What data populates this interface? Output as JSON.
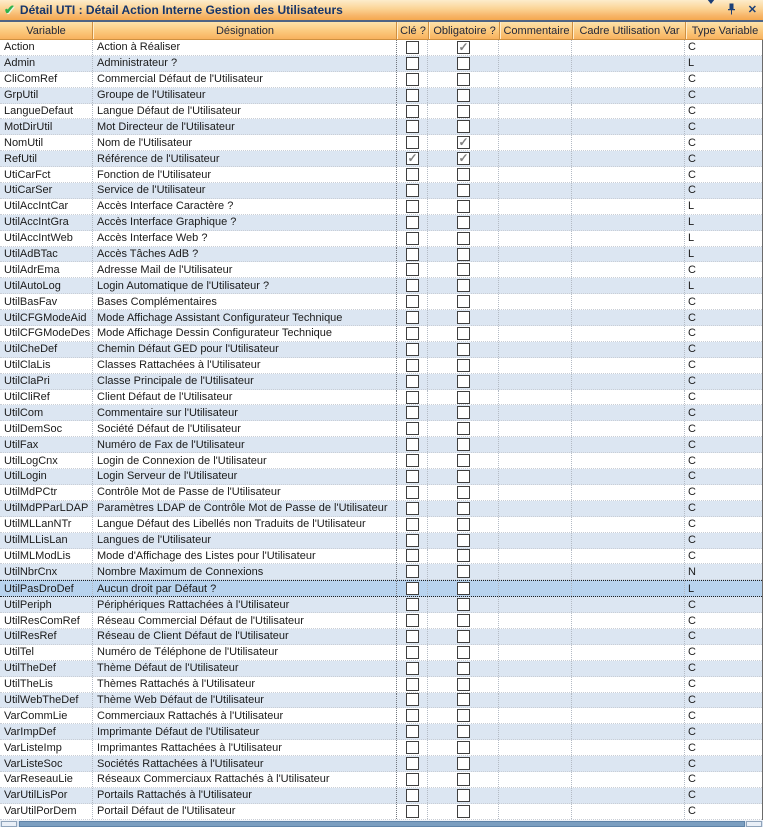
{
  "window": {
    "title": "Détail UTI : Détail Action Interne Gestion des Utilisateurs"
  },
  "colors": {
    "titlebar_orange": "#f5a94f",
    "title_text": "#16356b",
    "check_icon_green": "#2eb44b",
    "header_gradient_top": "#fde2ab",
    "header_gradient_bottom": "#f8b25e",
    "row_alt_blue": "#dce6f2",
    "row_selected_blue": "#b8d3ee",
    "scrollbar_thumb": "#7b9ec0"
  },
  "table": {
    "columns": [
      {
        "key": "variable",
        "label": "Variable"
      },
      {
        "key": "designation",
        "label": "Désignation"
      },
      {
        "key": "cle",
        "label": "Clé ?"
      },
      {
        "key": "obligatoire",
        "label": "Obligatoire ?"
      },
      {
        "key": "commentaire",
        "label": "Commentaire"
      },
      {
        "key": "cadre",
        "label": "Cadre Utilisation Var"
      },
      {
        "key": "type",
        "label": "Type Variable"
      }
    ],
    "selected_variable": "UtilPasDroDef",
    "rows": [
      {
        "variable": "Action",
        "designation": "Action à Réaliser",
        "cle": false,
        "obligatoire": true,
        "commentaire": "",
        "cadre": "",
        "type": "C"
      },
      {
        "variable": "Admin",
        "designation": "Administrateur ?",
        "cle": false,
        "obligatoire": false,
        "commentaire": "",
        "cadre": "",
        "type": "L"
      },
      {
        "variable": "CliComRef",
        "designation": "Commercial Défaut de l'Utilisateur",
        "cle": false,
        "obligatoire": false,
        "commentaire": "",
        "cadre": "",
        "type": "C"
      },
      {
        "variable": "GrpUtil",
        "designation": "Groupe de l'Utilisateur",
        "cle": false,
        "obligatoire": false,
        "commentaire": "",
        "cadre": "",
        "type": "C"
      },
      {
        "variable": "LangueDefaut",
        "designation": "Langue Défaut de l'Utilisateur",
        "cle": false,
        "obligatoire": false,
        "commentaire": "",
        "cadre": "",
        "type": "C"
      },
      {
        "variable": "MotDirUtil",
        "designation": "Mot Directeur de l'Utilisateur",
        "cle": false,
        "obligatoire": false,
        "commentaire": "",
        "cadre": "",
        "type": "C"
      },
      {
        "variable": "NomUtil",
        "designation": "Nom de l'Utilisateur",
        "cle": false,
        "obligatoire": true,
        "commentaire": "",
        "cadre": "",
        "type": "C"
      },
      {
        "variable": "RefUtil",
        "designation": "Référence de l'Utilisateur",
        "cle": true,
        "obligatoire": true,
        "commentaire": "",
        "cadre": "",
        "type": "C"
      },
      {
        "variable": "UtiCarFct",
        "designation": "Fonction de l'Utilisateur",
        "cle": false,
        "obligatoire": false,
        "commentaire": "",
        "cadre": "",
        "type": "C"
      },
      {
        "variable": "UtiCarSer",
        "designation": "Service de l'Utilisateur",
        "cle": false,
        "obligatoire": false,
        "commentaire": "",
        "cadre": "",
        "type": "C"
      },
      {
        "variable": "UtilAccIntCar",
        "designation": "Accès Interface Caractère ?",
        "cle": false,
        "obligatoire": false,
        "commentaire": "",
        "cadre": "",
        "type": "L"
      },
      {
        "variable": "UtilAccIntGra",
        "designation": "Accès Interface Graphique ?",
        "cle": false,
        "obligatoire": false,
        "commentaire": "",
        "cadre": "",
        "type": "L"
      },
      {
        "variable": "UtilAccIntWeb",
        "designation": "Accès Interface Web ?",
        "cle": false,
        "obligatoire": false,
        "commentaire": "",
        "cadre": "",
        "type": "L"
      },
      {
        "variable": "UtilAdBTac",
        "designation": "Accès Tâches AdB ?",
        "cle": false,
        "obligatoire": false,
        "commentaire": "",
        "cadre": "",
        "type": "L"
      },
      {
        "variable": "UtilAdrEma",
        "designation": "Adresse Mail de l'Utilisateur",
        "cle": false,
        "obligatoire": false,
        "commentaire": "",
        "cadre": "",
        "type": "C"
      },
      {
        "variable": "UtilAutoLog",
        "designation": "Login Automatique de l'Utilisateur ?",
        "cle": false,
        "obligatoire": false,
        "commentaire": "",
        "cadre": "",
        "type": "L"
      },
      {
        "variable": "UtilBasFav",
        "designation": "Bases Complémentaires",
        "cle": false,
        "obligatoire": false,
        "commentaire": "",
        "cadre": "",
        "type": "C"
      },
      {
        "variable": "UtilCFGModeAid",
        "designation": "Mode Affichage Assistant Configurateur Technique",
        "cle": false,
        "obligatoire": false,
        "commentaire": "",
        "cadre": "",
        "type": "C"
      },
      {
        "variable": "UtilCFGModeDes",
        "designation": "Mode Affichage Dessin Configurateur Technique",
        "cle": false,
        "obligatoire": false,
        "commentaire": "",
        "cadre": "",
        "type": "C"
      },
      {
        "variable": "UtilCheDef",
        "designation": "Chemin Défaut GED pour l'Utilisateur",
        "cle": false,
        "obligatoire": false,
        "commentaire": "",
        "cadre": "",
        "type": "C"
      },
      {
        "variable": "UtilClaLis",
        "designation": "Classes Rattachées à l'Utilisateur",
        "cle": false,
        "obligatoire": false,
        "commentaire": "",
        "cadre": "",
        "type": "C"
      },
      {
        "variable": "UtilClaPri",
        "designation": "Classe Principale de l'Utilisateur",
        "cle": false,
        "obligatoire": false,
        "commentaire": "",
        "cadre": "",
        "type": "C"
      },
      {
        "variable": "UtilCliRef",
        "designation": "Client Défaut de l'Utilisateur",
        "cle": false,
        "obligatoire": false,
        "commentaire": "",
        "cadre": "",
        "type": "C"
      },
      {
        "variable": "UtilCom",
        "designation": "Commentaire sur l'Utilisateur",
        "cle": false,
        "obligatoire": false,
        "commentaire": "",
        "cadre": "",
        "type": "C"
      },
      {
        "variable": "UtilDemSoc",
        "designation": "Société Défaut de l'Utilisateur",
        "cle": false,
        "obligatoire": false,
        "commentaire": "",
        "cadre": "",
        "type": "C"
      },
      {
        "variable": "UtilFax",
        "designation": "Numéro de Fax de l'Utilisateur",
        "cle": false,
        "obligatoire": false,
        "commentaire": "",
        "cadre": "",
        "type": "C"
      },
      {
        "variable": "UtilLogCnx",
        "designation": "Login de Connexion de l'Utilisateur",
        "cle": false,
        "obligatoire": false,
        "commentaire": "",
        "cadre": "",
        "type": "C"
      },
      {
        "variable": "UtilLogin",
        "designation": "Login Serveur de l'Utilisateur",
        "cle": false,
        "obligatoire": false,
        "commentaire": "",
        "cadre": "",
        "type": "C"
      },
      {
        "variable": "UtilMdPCtr",
        "designation": "Contrôle Mot de Passe de l'Utilisateur",
        "cle": false,
        "obligatoire": false,
        "commentaire": "",
        "cadre": "",
        "type": "C"
      },
      {
        "variable": "UtilMdPParLDAP",
        "designation": "Paramètres LDAP de Contrôle Mot de Passe de l'Utilisateur",
        "cle": false,
        "obligatoire": false,
        "commentaire": "",
        "cadre": "",
        "type": "C"
      },
      {
        "variable": "UtilMLLanNTr",
        "designation": "Langue Défaut des Libellés non Traduits de l'Utilisateur",
        "cle": false,
        "obligatoire": false,
        "commentaire": "",
        "cadre": "",
        "type": "C"
      },
      {
        "variable": "UtilMLLisLan",
        "designation": "Langues de l'Utilisateur",
        "cle": false,
        "obligatoire": false,
        "commentaire": "",
        "cadre": "",
        "type": "C"
      },
      {
        "variable": "UtilMLModLis",
        "designation": "Mode d'Affichage des Listes pour l'Utilisateur",
        "cle": false,
        "obligatoire": false,
        "commentaire": "",
        "cadre": "",
        "type": "C"
      },
      {
        "variable": "UtilNbrCnx",
        "designation": "Nombre Maximum de Connexions",
        "cle": false,
        "obligatoire": false,
        "commentaire": "",
        "cadre": "",
        "type": "N"
      },
      {
        "variable": "UtilPasDroDef",
        "designation": "Aucun droit par Défaut ?",
        "cle": false,
        "obligatoire": false,
        "commentaire": "",
        "cadre": "",
        "type": "L"
      },
      {
        "variable": "UtilPeriph",
        "designation": "Périphériques Rattachées à l'Utilisateur",
        "cle": false,
        "obligatoire": false,
        "commentaire": "",
        "cadre": "",
        "type": "C"
      },
      {
        "variable": "UtilResComRef",
        "designation": "Réseau Commercial Défaut de l'Utilisateur",
        "cle": false,
        "obligatoire": false,
        "commentaire": "",
        "cadre": "",
        "type": "C"
      },
      {
        "variable": "UtilResRef",
        "designation": "Réseau de Client Défaut de l'Utilisateur",
        "cle": false,
        "obligatoire": false,
        "commentaire": "",
        "cadre": "",
        "type": "C"
      },
      {
        "variable": "UtilTel",
        "designation": "Numéro de Téléphone de l'Utilisateur",
        "cle": false,
        "obligatoire": false,
        "commentaire": "",
        "cadre": "",
        "type": "C"
      },
      {
        "variable": "UtilTheDef",
        "designation": "Thème Défaut de l'Utilisateur",
        "cle": false,
        "obligatoire": false,
        "commentaire": "",
        "cadre": "",
        "type": "C"
      },
      {
        "variable": "UtilTheLis",
        "designation": "Thèmes Rattachés à l'Utilisateur",
        "cle": false,
        "obligatoire": false,
        "commentaire": "",
        "cadre": "",
        "type": "C"
      },
      {
        "variable": "UtilWebTheDef",
        "designation": "Thème Web Défaut de l'Utilisateur",
        "cle": false,
        "obligatoire": false,
        "commentaire": "",
        "cadre": "",
        "type": "C"
      },
      {
        "variable": "VarCommLie",
        "designation": "Commerciaux Rattachés à l'Utilisateur",
        "cle": false,
        "obligatoire": false,
        "commentaire": "",
        "cadre": "",
        "type": "C"
      },
      {
        "variable": "VarImpDef",
        "designation": "Imprimante Défaut de l'Utilisateur",
        "cle": false,
        "obligatoire": false,
        "commentaire": "",
        "cadre": "",
        "type": "C"
      },
      {
        "variable": "VarListeImp",
        "designation": "Imprimantes Rattachées à l'Utilisateur",
        "cle": false,
        "obligatoire": false,
        "commentaire": "",
        "cadre": "",
        "type": "C"
      },
      {
        "variable": "VarListeSoc",
        "designation": "Sociétés Rattachées à l'Utilisateur",
        "cle": false,
        "obligatoire": false,
        "commentaire": "",
        "cadre": "",
        "type": "C"
      },
      {
        "variable": "VarReseauLie",
        "designation": "Réseaux Commerciaux Rattachés à l'Utilisateur",
        "cle": false,
        "obligatoire": false,
        "commentaire": "",
        "cadre": "",
        "type": "C"
      },
      {
        "variable": "VarUtilLisPor",
        "designation": "Portails Rattachés à l'Utilisateur",
        "cle": false,
        "obligatoire": false,
        "commentaire": "",
        "cadre": "",
        "type": "C"
      },
      {
        "variable": "VarUtilPorDem",
        "designation": "Portail Défaut de l'Utilisateur",
        "cle": false,
        "obligatoire": false,
        "commentaire": "",
        "cadre": "",
        "type": "C"
      }
    ]
  }
}
